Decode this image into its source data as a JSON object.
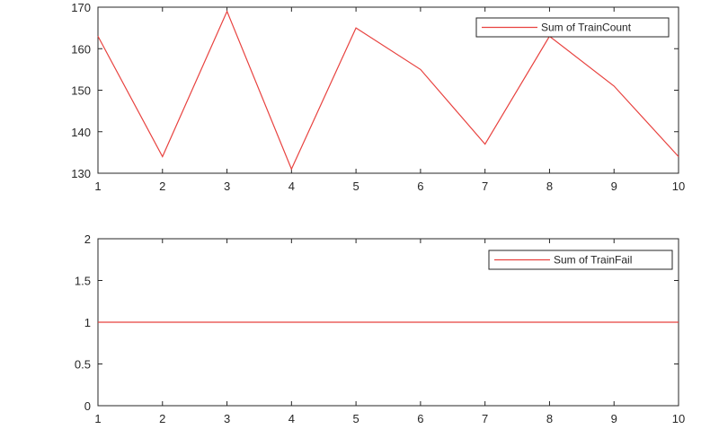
{
  "chart_data": [
    {
      "type": "line",
      "x": [
        1,
        2,
        3,
        4,
        5,
        6,
        7,
        8,
        9,
        10
      ],
      "series": [
        {
          "name": "Sum of TrainCount",
          "values": [
            163,
            134,
            169,
            131,
            165,
            155,
            137,
            163,
            151,
            134
          ],
          "color": "#e8423f"
        }
      ],
      "xlim": [
        1,
        10
      ],
      "ylim": [
        130,
        170
      ],
      "xticks": [
        "1",
        "2",
        "3",
        "4",
        "5",
        "6",
        "7",
        "8",
        "9",
        "10"
      ],
      "yticks": [
        "130",
        "140",
        "150",
        "160",
        "170"
      ],
      "legend_position": "top-right",
      "grid": false
    },
    {
      "type": "line",
      "x": [
        1,
        2,
        3,
        4,
        5,
        6,
        7,
        8,
        9,
        10
      ],
      "series": [
        {
          "name": "Sum of TrainFail",
          "values": [
            1,
            1,
            1,
            1,
            1,
            1,
            1,
            1,
            1,
            1
          ],
          "color": "#e8423f"
        }
      ],
      "xlim": [
        1,
        10
      ],
      "ylim": [
        0,
        2
      ],
      "xticks": [
        "1",
        "2",
        "3",
        "4",
        "5",
        "6",
        "7",
        "8",
        "9",
        "10"
      ],
      "yticks": [
        "0",
        "0.5",
        "1",
        "1.5",
        "2"
      ],
      "legend_position": "top-right",
      "grid": false
    }
  ]
}
